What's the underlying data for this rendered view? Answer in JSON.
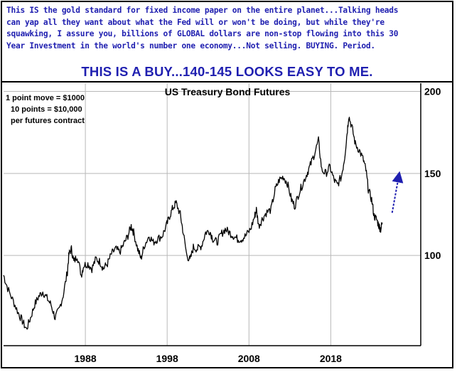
{
  "header": {
    "lines": [
      "This IS the gold standard for fixed income paper on the entire planet...Talking heads",
      "can yap all they want about what the Fed will or won't be doing, but while they're",
      "squawking, I assure you, billions of GLOBAL dollars are non-stop flowing into this 30",
      "Year Investment in the world's number one economy...Not selling. BUYING. Period."
    ],
    "headline": "THIS IS A BUY...140-145 LOOKS EASY TO ME."
  },
  "notes": [
    "1 point move = $1000",
    "10 points = $10,000",
    "per futures contract"
  ],
  "colors": {
    "text_blue": "#1f1fb0",
    "price": "#000000",
    "arrow": "#1f1fb0",
    "grid": "#b8b8b8"
  },
  "chart_data": {
    "type": "line",
    "title": "US Treasury Bond Futures",
    "xlabel": "",
    "ylabel": "",
    "xlim": [
      1978,
      2029
    ],
    "ylim": [
      45,
      205
    ],
    "x_ticks": [
      "1988",
      "1998",
      "2008",
      "2018"
    ],
    "y_ticks": [
      "100",
      "150",
      "200"
    ],
    "grid": true,
    "series": [
      {
        "x": [
          1978.0,
          1978.5,
          1979.2,
          1979.8,
          1980.3,
          1980.8,
          1981.3,
          1981.8,
          1982.3,
          1982.8,
          1983.3,
          1983.8,
          1984.3,
          1984.8,
          1985.3,
          1985.8,
          1986.0,
          1986.3,
          1986.6,
          1987.0,
          1987.5,
          1987.8,
          1988.3,
          1988.8,
          1989.3,
          1989.8,
          1990.2,
          1990.7,
          1991.2,
          1991.7,
          1992.2,
          1992.7,
          1993.2,
          1993.6,
          1993.9,
          1994.4,
          1994.8,
          1995.2,
          1995.8,
          1996.3,
          1996.8,
          1997.4,
          1997.9,
          1998.3,
          1998.7,
          1999.1,
          1999.6,
          1999.9,
          2000.4,
          2000.8,
          2001.2,
          2001.7,
          2002.2,
          2002.7,
          2003.2,
          2003.6,
          2004.1,
          2004.6,
          2005.1,
          2005.6,
          2006.1,
          2006.6,
          2007.1,
          2007.6,
          2008.2,
          2008.7,
          2008.9,
          2009.2,
          2009.6,
          2010.1,
          2010.7,
          2011.2,
          2011.7,
          2012.2,
          2012.7,
          2013.2,
          2013.6,
          2014.1,
          2014.6,
          2015.1,
          2015.5,
          2016.0,
          2016.5,
          2016.9,
          2017.4,
          2017.9,
          2018.4,
          2018.8,
          2019.3,
          2019.7,
          2020.0,
          2020.2,
          2020.6,
          2021.0,
          2021.5,
          2022.0,
          2022.3,
          2022.6,
          2023.0,
          2023.3,
          2023.6,
          2023.9,
          2024.1,
          2024.3
        ],
        "y": [
          88,
          80,
          72,
          65,
          60,
          55,
          62,
          70,
          75,
          78,
          74,
          70,
          62,
          67,
          76,
          90,
          101,
          104,
          96,
          100,
          88,
          94,
          95,
          92,
          98,
          96,
          92,
          95,
          101,
          104,
          102,
          107,
          112,
          118,
          114,
          104,
          98,
          106,
          112,
          108,
          110,
          112,
          118,
          124,
          129,
          132,
          125,
          116,
          100,
          97,
          105,
          104,
          106,
          114,
          115,
          110,
          108,
          113,
          116,
          114,
          112,
          110,
          110,
          112,
          116,
          124,
          128,
          118,
          122,
          126,
          128,
          140,
          146,
          148,
          144,
          134,
          130,
          138,
          144,
          150,
          155,
          162,
          170,
          152,
          150,
          154,
          146,
          143,
          148,
          160,
          175,
          185,
          178,
          168,
          164,
          158,
          152,
          140,
          134,
          124,
          122,
          118,
          116,
          120
        ]
      }
    ],
    "annotation": {
      "type": "arrow",
      "from": [
        2025.5,
        126
      ],
      "to": [
        2026.3,
        148
      ]
    }
  }
}
